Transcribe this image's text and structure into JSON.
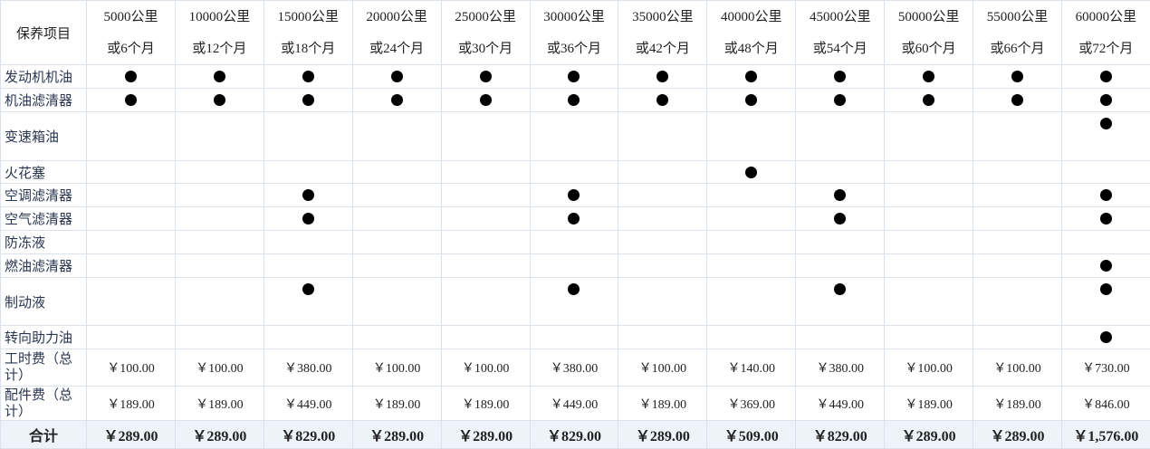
{
  "header": {
    "label": "保养项目",
    "intervals": [
      {
        "distance": "5000公里",
        "time": "或6个月"
      },
      {
        "distance": "10000公里",
        "time": "或12个月"
      },
      {
        "distance": "15000公里",
        "time": "或18个月"
      },
      {
        "distance": "20000公里",
        "time": "或24个月"
      },
      {
        "distance": "25000公里",
        "time": "或30个月"
      },
      {
        "distance": "30000公里",
        "time": "或36个月"
      },
      {
        "distance": "35000公里",
        "time": "或42个月"
      },
      {
        "distance": "40000公里",
        "time": "或48个月"
      },
      {
        "distance": "45000公里",
        "time": "或54个月"
      },
      {
        "distance": "50000公里",
        "time": "或60个月"
      },
      {
        "distance": "55000公里",
        "time": "或66个月"
      },
      {
        "distance": "60000公里",
        "time": "或72个月"
      }
    ]
  },
  "items": [
    {
      "name": "发动机机油",
      "due": [
        true,
        true,
        true,
        true,
        true,
        true,
        true,
        true,
        true,
        true,
        true,
        true
      ]
    },
    {
      "name": "机油滤清器",
      "due": [
        true,
        true,
        true,
        true,
        true,
        true,
        true,
        true,
        true,
        true,
        true,
        true
      ]
    },
    {
      "name": "变速箱油",
      "due": [
        false,
        false,
        false,
        false,
        false,
        false,
        false,
        false,
        false,
        false,
        false,
        true
      ]
    },
    {
      "name": "火花塞",
      "due": [
        false,
        false,
        false,
        false,
        false,
        false,
        false,
        true,
        false,
        false,
        false,
        false
      ]
    },
    {
      "name": "空调滤清器",
      "due": [
        false,
        false,
        true,
        false,
        false,
        true,
        false,
        false,
        true,
        false,
        false,
        true
      ]
    },
    {
      "name": "空气滤清器",
      "due": [
        false,
        false,
        true,
        false,
        false,
        true,
        false,
        false,
        true,
        false,
        false,
        true
      ]
    },
    {
      "name": "防冻液",
      "due": [
        false,
        false,
        false,
        false,
        false,
        false,
        false,
        false,
        false,
        false,
        false,
        false
      ]
    },
    {
      "name": "燃油滤清器",
      "due": [
        false,
        false,
        false,
        false,
        false,
        false,
        false,
        false,
        false,
        false,
        false,
        true
      ]
    },
    {
      "name": "制动液",
      "due": [
        false,
        false,
        true,
        false,
        false,
        true,
        false,
        false,
        true,
        false,
        false,
        true
      ]
    },
    {
      "name": "转向助力油",
      "due": [
        false,
        false,
        false,
        false,
        false,
        false,
        false,
        false,
        false,
        false,
        false,
        true
      ]
    }
  ],
  "fees": [
    {
      "name": "工时费（总计）",
      "amounts": [
        "￥100.00",
        "￥100.00",
        "￥380.00",
        "￥100.00",
        "￥100.00",
        "￥380.00",
        "￥100.00",
        "￥140.00",
        "￥380.00",
        "￥100.00",
        "￥100.00",
        "￥730.00"
      ]
    },
    {
      "name": "配件费（总计）",
      "amounts": [
        "￥189.00",
        "￥189.00",
        "￥449.00",
        "￥189.00",
        "￥189.00",
        "￥449.00",
        "￥189.00",
        "￥369.00",
        "￥449.00",
        "￥189.00",
        "￥189.00",
        "￥846.00"
      ]
    }
  ],
  "total": {
    "name": "合计",
    "amounts": [
      "￥289.00",
      "￥289.00",
      "￥829.00",
      "￥289.00",
      "￥289.00",
      "￥829.00",
      "￥289.00",
      "￥509.00",
      "￥829.00",
      "￥289.00",
      "￥289.00",
      "￥1,576.00"
    ]
  }
}
